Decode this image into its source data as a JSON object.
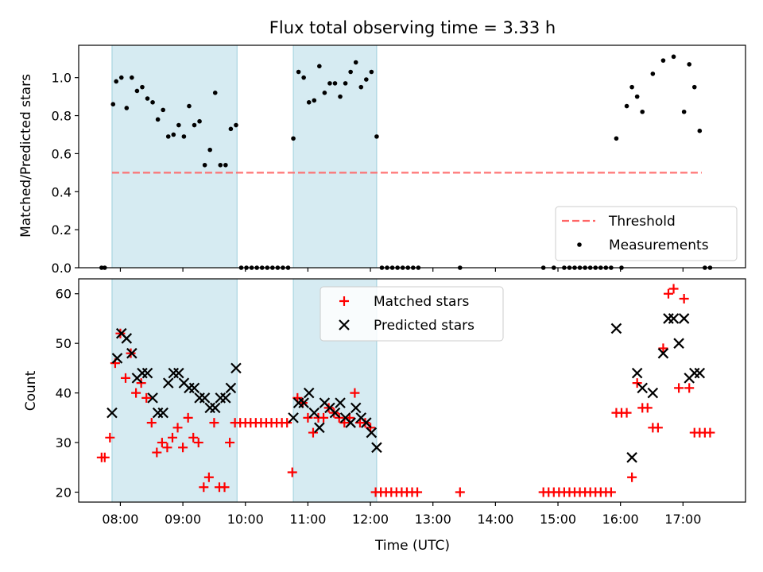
{
  "chart_data": [
    {
      "type": "scatter",
      "title": "Flux total observing time = 3.33 h",
      "xlabel": "",
      "ylabel": "Matched/Predicted stars",
      "xlim": [
        "07:20",
        "18:00"
      ],
      "ylim": [
        0,
        1.17
      ],
      "yticks": [
        "0.0",
        "0.2",
        "0.4",
        "0.6",
        "0.8",
        "1.0"
      ],
      "shaded_intervals": [
        [
          "07:52",
          "09:52"
        ],
        [
          "10:46",
          "12:06"
        ]
      ],
      "threshold": {
        "y": 0.5,
        "x_start": "07:52",
        "x_end": "17:18"
      },
      "legend": {
        "position": "lower-right",
        "entries": [
          "Threshold",
          "Measurements"
        ]
      },
      "series": [
        {
          "name": "Measurements",
          "marker": "dot",
          "color": "#000000",
          "x": [
            "07:42",
            "07:45",
            "07:53",
            "07:56",
            "08:01",
            "08:06",
            "08:11",
            "08:16",
            "08:21",
            "08:26",
            "08:31",
            "08:36",
            "08:41",
            "08:46",
            "08:51",
            "08:56",
            "09:01",
            "09:06",
            "09:11",
            "09:16",
            "09:21",
            "09:26",
            "09:31",
            "09:36",
            "09:41",
            "09:46",
            "09:51",
            "09:56",
            "10:01",
            "10:06",
            "10:11",
            "10:16",
            "10:21",
            "10:26",
            "10:31",
            "10:36",
            "10:41",
            "10:46",
            "10:51",
            "10:56",
            "11:01",
            "11:06",
            "11:11",
            "11:16",
            "11:21",
            "11:26",
            "11:31",
            "11:36",
            "11:41",
            "11:46",
            "11:51",
            "11:56",
            "12:01",
            "12:06",
            "12:11",
            "12:16",
            "12:21",
            "12:26",
            "12:31",
            "12:36",
            "12:41",
            "12:46",
            "13:26",
            "14:46",
            "14:56",
            "15:06",
            "15:11",
            "15:16",
            "15:21",
            "15:26",
            "15:31",
            "15:36",
            "15:41",
            "15:46",
            "15:51",
            "15:56",
            "16:01",
            "16:06",
            "16:11",
            "16:16",
            "16:21",
            "16:31",
            "16:41",
            "16:51",
            "17:01",
            "17:06",
            "17:11",
            "17:16",
            "17:21",
            "17:26"
          ],
          "y": [
            0,
            0,
            0.86,
            0.98,
            1.0,
            0.84,
            1.0,
            0.93,
            0.95,
            0.89,
            0.87,
            0.78,
            0.83,
            0.69,
            0.7,
            0.75,
            0.69,
            0.85,
            0.75,
            0.77,
            0.54,
            0.62,
            0.92,
            0.54,
            0.54,
            0.73,
            0.75,
            0,
            0,
            0,
            0,
            0,
            0,
            0,
            0,
            0,
            0,
            0.68,
            1.03,
            1.0,
            0.87,
            0.88,
            1.06,
            0.92,
            0.97,
            0.97,
            0.9,
            0.97,
            1.03,
            1.08,
            0.95,
            0.99,
            1.03,
            0.69,
            0,
            0,
            0,
            0,
            0,
            0,
            0,
            0,
            0,
            0,
            0,
            0,
            0,
            0,
            0,
            0,
            0,
            0,
            0,
            0,
            0,
            0.68,
            0,
            0.85,
            0.95,
            0.9,
            0.82,
            1.02,
            1.09,
            1.11,
            0.82,
            1.07,
            0.95,
            0.72,
            0,
            0
          ]
        }
      ]
    },
    {
      "type": "scatter",
      "title": "",
      "xlabel": "Time (UTC)",
      "ylabel": "Count",
      "xlim": [
        "07:20",
        "18:00"
      ],
      "ylim": [
        18,
        63
      ],
      "xticks": [
        "08:00",
        "09:00",
        "10:00",
        "11:00",
        "12:00",
        "13:00",
        "14:00",
        "15:00",
        "16:00",
        "17:00"
      ],
      "yticks": [
        "20",
        "30",
        "40",
        "50",
        "60"
      ],
      "shaded_intervals": [
        [
          "07:52",
          "09:52"
        ],
        [
          "10:46",
          "12:06"
        ]
      ],
      "legend": {
        "position": "upper-center",
        "entries": [
          "Matched stars",
          "Predicted stars"
        ]
      },
      "series": [
        {
          "name": "Matched stars",
          "marker": "plus",
          "color": "#ff0000",
          "x": [
            "07:42",
            "07:45",
            "07:50",
            "07:55",
            "08:00",
            "08:05",
            "08:10",
            "08:15",
            "08:20",
            "08:25",
            "08:30",
            "08:35",
            "08:40",
            "08:45",
            "08:50",
            "08:55",
            "09:00",
            "09:05",
            "09:10",
            "09:15",
            "09:20",
            "09:25",
            "09:30",
            "09:35",
            "09:40",
            "09:45",
            "09:50",
            "09:55",
            "10:00",
            "10:05",
            "10:10",
            "10:15",
            "10:20",
            "10:25",
            "10:30",
            "10:35",
            "10:40",
            "10:45",
            "10:50",
            "10:55",
            "11:00",
            "11:05",
            "11:10",
            "11:15",
            "11:20",
            "11:25",
            "11:30",
            "11:35",
            "11:40",
            "11:45",
            "11:50",
            "11:55",
            "12:00",
            "12:05",
            "12:10",
            "12:15",
            "12:20",
            "12:25",
            "12:30",
            "12:35",
            "12:40",
            "12:45",
            "13:26",
            "14:46",
            "14:51",
            "14:56",
            "15:01",
            "15:06",
            "15:11",
            "15:16",
            "15:21",
            "15:26",
            "15:31",
            "15:36",
            "15:41",
            "15:46",
            "15:51",
            "15:56",
            "16:01",
            "16:06",
            "16:11",
            "16:16",
            "16:21",
            "16:26",
            "16:31",
            "16:36",
            "16:41",
            "16:46",
            "16:51",
            "16:56",
            "17:01",
            "17:06",
            "17:11",
            "17:16",
            "17:21",
            "17:26"
          ],
          "y": [
            27,
            27,
            31,
            46,
            52,
            43,
            48,
            40,
            42,
            39,
            34,
            28,
            30,
            29,
            31,
            33,
            29,
            35,
            31,
            30,
            21,
            23,
            34,
            21,
            21,
            30,
            34,
            34,
            34,
            34,
            34,
            34,
            34,
            34,
            34,
            34,
            34,
            24,
            39,
            38,
            35,
            32,
            35,
            35,
            37,
            36,
            35,
            34,
            35,
            40,
            34,
            34,
            33,
            20,
            20,
            20,
            20,
            20,
            20,
            20,
            20,
            20,
            20,
            20,
            20,
            20,
            20,
            20,
            20,
            20,
            20,
            20,
            20,
            20,
            20,
            20,
            20,
            36,
            36,
            36,
            23,
            42,
            37,
            37,
            33,
            33,
            49,
            60,
            61,
            41,
            59,
            41,
            32,
            32,
            32,
            32
          ]
        },
        {
          "name": "Predicted stars",
          "marker": "x",
          "color": "#000000",
          "x": [
            "07:52",
            "07:57",
            "08:01",
            "08:06",
            "08:11",
            "08:16",
            "08:21",
            "08:26",
            "08:31",
            "08:36",
            "08:41",
            "08:46",
            "08:51",
            "08:56",
            "09:01",
            "09:06",
            "09:11",
            "09:16",
            "09:21",
            "09:26",
            "09:31",
            "09:36",
            "09:41",
            "09:46",
            "09:51",
            "10:46",
            "10:51",
            "10:56",
            "11:01",
            "11:06",
            "11:11",
            "11:16",
            "11:21",
            "11:26",
            "11:31",
            "11:36",
            "11:41",
            "11:46",
            "11:51",
            "11:56",
            "12:01",
            "12:06",
            "15:56",
            "16:11",
            "16:16",
            "16:21",
            "16:31",
            "16:41",
            "16:46",
            "16:51",
            "16:56",
            "17:01",
            "17:06",
            "17:11",
            "17:16"
          ],
          "y": [
            36,
            47,
            52,
            51,
            48,
            43,
            44,
            44,
            39,
            36,
            36,
            42,
            44,
            44,
            42,
            41,
            41,
            39,
            39,
            37,
            37,
            39,
            39,
            41,
            45,
            35,
            38,
            38,
            40,
            36,
            33,
            38,
            37,
            36,
            38,
            35,
            34,
            37,
            35,
            34,
            32,
            29,
            53,
            27,
            44,
            41,
            40,
            48,
            55,
            55,
            50,
            55,
            43,
            44,
            44
          ]
        }
      ]
    }
  ]
}
